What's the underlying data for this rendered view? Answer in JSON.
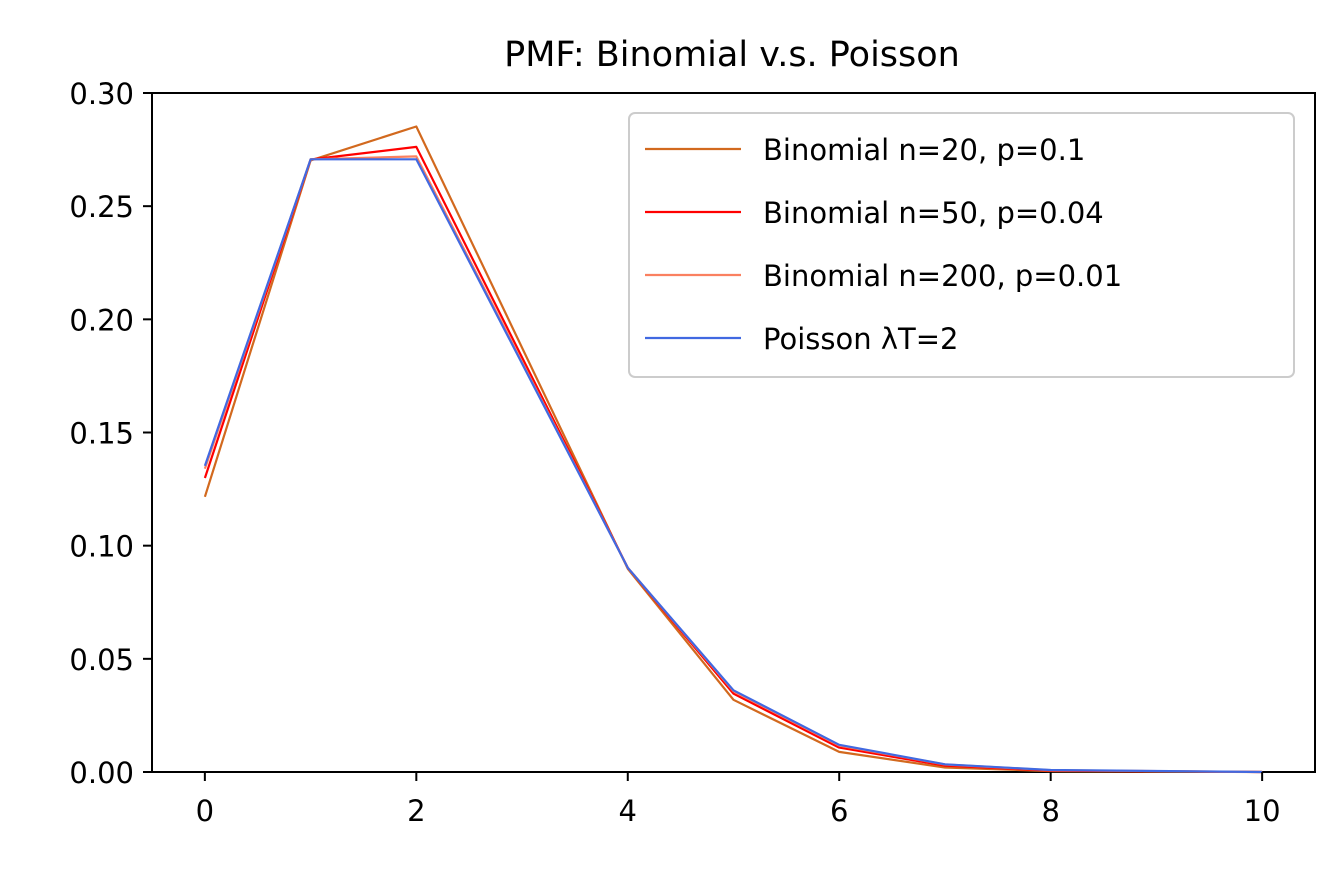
{
  "chart_data": {
    "type": "line",
    "title": "PMF: Binomial v.s. Poisson",
    "xlabel": "",
    "ylabel": "",
    "xlim": [
      -0.5,
      10.5
    ],
    "ylim": [
      0,
      0.3
    ],
    "xticks": [
      0,
      2,
      4,
      6,
      8,
      10
    ],
    "xtick_labels": [
      "0",
      "2",
      "4",
      "6",
      "8",
      "10"
    ],
    "yticks": [
      0,
      0.05,
      0.1,
      0.15,
      0.2,
      0.25,
      0.3
    ],
    "ytick_labels": [
      "0.00",
      "0.05",
      "0.10",
      "0.15",
      "0.20",
      "0.25",
      "0.30"
    ],
    "grid": false,
    "legend_position": "top-right",
    "x": [
      0,
      1,
      2,
      4,
      5,
      6,
      7,
      8,
      10
    ],
    "series": [
      {
        "name": "Binomial n=20, p=0.1",
        "color": "#d2691e",
        "values": [
          0.1216,
          0.2702,
          0.2852,
          0.0898,
          0.0319,
          0.0089,
          0.002,
          0.0004,
          0.0
        ]
      },
      {
        "name": "Binomial n=50, p=0.04",
        "color": "#ff0000",
        "values": [
          0.1299,
          0.2706,
          0.2762,
          0.0902,
          0.0346,
          0.0108,
          0.0028,
          0.0006,
          0.0
        ]
      },
      {
        "name": "Binomial n=200, p=0.01",
        "color": "#fa8060",
        "values": [
          0.134,
          0.2707,
          0.272,
          0.0902,
          0.0357,
          0.0117,
          0.0033,
          0.0008,
          0.0
        ]
      },
      {
        "name": "Poisson λT=2",
        "color": "#4169e1",
        "values": [
          0.1353,
          0.2707,
          0.2707,
          0.0902,
          0.0361,
          0.012,
          0.0034,
          0.0009,
          0.0
        ]
      }
    ]
  }
}
